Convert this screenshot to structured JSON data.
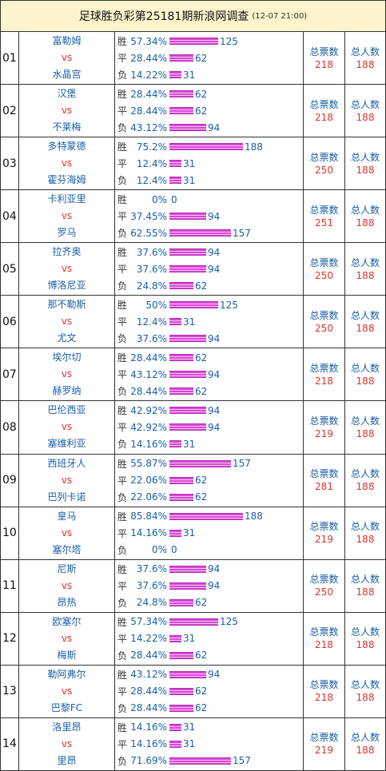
{
  "header": {
    "title": "足球胜负彩第25181期新浪网调查",
    "time": "(12-07 21:00)"
  },
  "labels": {
    "win": "胜",
    "draw": "平",
    "loss": "负",
    "vs": "vs",
    "total_votes": "总票数",
    "total_people": "总人数"
  },
  "matches": [
    {
      "num": "01",
      "home": "富勒姆",
      "away": "水晶宫",
      "win_pct": "57.34%",
      "win": 125,
      "draw_pct": "28.44%",
      "draw": 62,
      "loss_pct": "14.22%",
      "loss": 31,
      "total_votes": "218",
      "total_people": "188"
    },
    {
      "num": "02",
      "home": "汉堡",
      "away": "不莱梅",
      "win_pct": "28.44%",
      "win": 62,
      "draw_pct": "28.44%",
      "draw": 62,
      "loss_pct": "43.12%",
      "loss": 94,
      "total_votes": "218",
      "total_people": "188"
    },
    {
      "num": "03",
      "home": "多特蒙德",
      "away": "霍芬海姆",
      "win_pct": "75.2%",
      "win": 188,
      "draw_pct": "12.4%",
      "draw": 31,
      "loss_pct": "12.4%",
      "loss": 31,
      "total_votes": "250",
      "total_people": "188"
    },
    {
      "num": "04",
      "home": "卡利亚里",
      "away": "罗马",
      "win_pct": "0%",
      "win": 0,
      "draw_pct": "37.45%",
      "draw": 94,
      "loss_pct": "62.55%",
      "loss": 157,
      "total_votes": "251",
      "total_people": "188"
    },
    {
      "num": "05",
      "home": "拉齐奥",
      "away": "博洛尼亚",
      "win_pct": "37.6%",
      "win": 94,
      "draw_pct": "37.6%",
      "draw": 94,
      "loss_pct": "24.8%",
      "loss": 62,
      "total_votes": "250",
      "total_people": "188"
    },
    {
      "num": "06",
      "home": "那不勒斯",
      "away": "尤文",
      "win_pct": "50%",
      "win": 125,
      "draw_pct": "12.4%",
      "draw": 31,
      "loss_pct": "37.6%",
      "loss": 94,
      "total_votes": "250",
      "total_people": "188"
    },
    {
      "num": "07",
      "home": "埃尔切",
      "away": "赫罗纳",
      "win_pct": "28.44%",
      "win": 62,
      "draw_pct": "43.12%",
      "draw": 94,
      "loss_pct": "28.44%",
      "loss": 62,
      "total_votes": "218",
      "total_people": "188"
    },
    {
      "num": "08",
      "home": "巴伦西亚",
      "away": "塞维利亚",
      "win_pct": "42.92%",
      "win": 94,
      "draw_pct": "42.92%",
      "draw": 94,
      "loss_pct": "14.16%",
      "loss": 31,
      "total_votes": "219",
      "total_people": "188"
    },
    {
      "num": "09",
      "home": "西班牙人",
      "away": "巴列卡诺",
      "win_pct": "55.87%",
      "win": 157,
      "draw_pct": "22.06%",
      "draw": 62,
      "loss_pct": "22.06%",
      "loss": 62,
      "total_votes": "281",
      "total_people": "188"
    },
    {
      "num": "10",
      "home": "皇马",
      "away": "塞尔塔",
      "win_pct": "85.84%",
      "win": 188,
      "draw_pct": "14.16%",
      "draw": 31,
      "loss_pct": "0%",
      "loss": 0,
      "total_votes": "219",
      "total_people": "188"
    },
    {
      "num": "11",
      "home": "尼斯",
      "away": "昂热",
      "win_pct": "37.6%",
      "win": 94,
      "draw_pct": "37.6%",
      "draw": 94,
      "loss_pct": "24.8%",
      "loss": 62,
      "total_votes": "250",
      "total_people": "188"
    },
    {
      "num": "12",
      "home": "欧塞尔",
      "away": "梅斯",
      "win_pct": "57.34%",
      "win": 125,
      "draw_pct": "14.22%",
      "draw": 31,
      "loss_pct": "28.44%",
      "loss": 62,
      "total_votes": "218",
      "total_people": "188"
    },
    {
      "num": "13",
      "home": "勒阿弗尔",
      "away": "巴黎FC",
      "win_pct": "43.12%",
      "win": 94,
      "draw_pct": "28.44%",
      "draw": 62,
      "loss_pct": "28.44%",
      "loss": 62,
      "total_votes": "218",
      "total_people": "188"
    },
    {
      "num": "14",
      "home": "洛里昂",
      "away": "里昂",
      "win_pct": "14.16%",
      "win": 31,
      "draw_pct": "14.16%",
      "draw": 31,
      "loss_pct": "71.69%",
      "loss": 157,
      "total_votes": "219",
      "total_people": "188"
    }
  ]
}
